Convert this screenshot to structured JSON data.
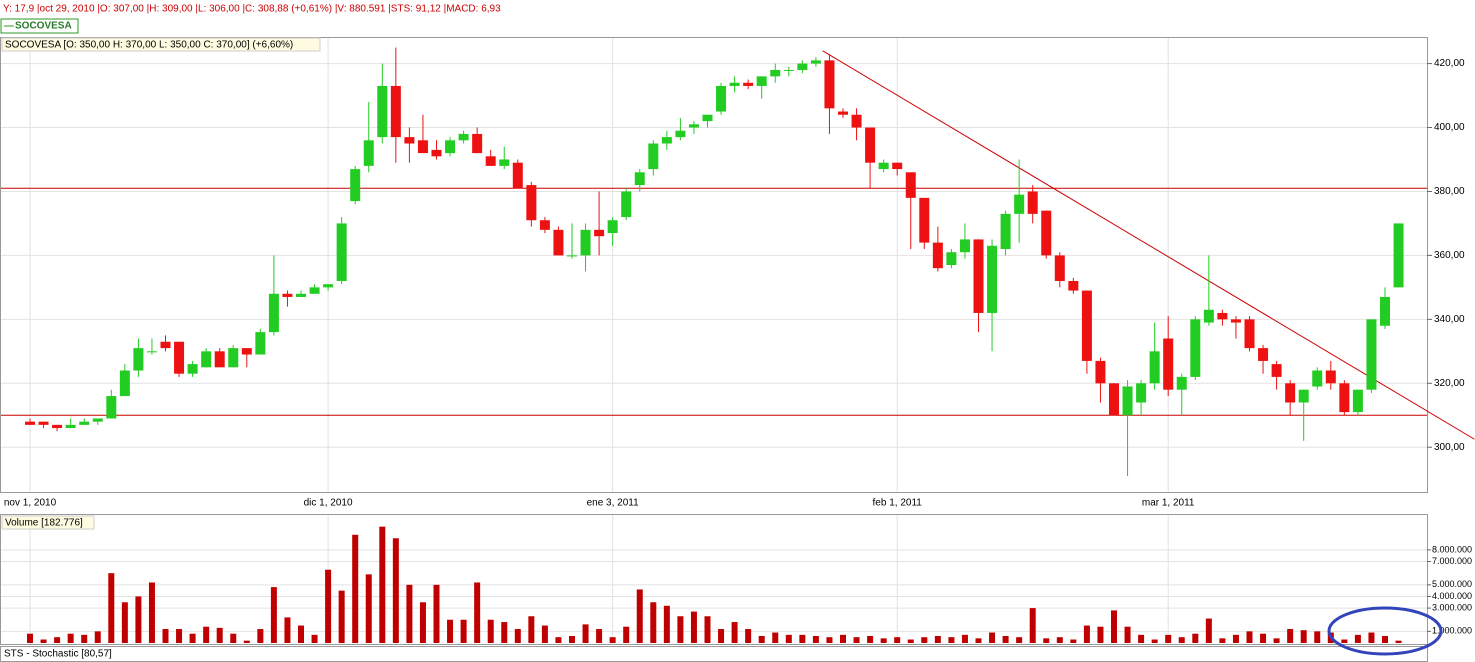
{
  "status": "Y: 17,9 |oct 29, 2010 |O: 307,00 |H: 309,00 |L: 306,00 |C: 308,88 (+0,61%) |V: 880.591 |STS: 91,12 |MACD: 6,93",
  "legend": "SOCOVESA",
  "chart_data": [
    {
      "type": "candlestick",
      "title": "SOCOVESA [O: 350,00  H: 370,00  L: 350,00  C: 370,00] (+6,60%)",
      "categories": [
        "nov 1, 2010",
        null,
        null,
        null,
        null,
        null,
        null,
        null,
        null,
        null,
        null,
        null,
        null,
        null,
        null,
        null,
        null,
        null,
        null,
        null,
        null,
        null,
        "dic 1, 2010",
        null,
        null,
        null,
        null,
        null,
        null,
        null,
        null,
        null,
        null,
        null,
        null,
        null,
        null,
        null,
        null,
        null,
        null,
        null,
        null,
        "ene 3, 2011",
        null,
        null,
        null,
        null,
        null,
        null,
        null,
        null,
        null,
        null,
        null,
        null,
        null,
        null,
        null,
        null,
        null,
        null,
        null,
        null,
        "feb 1, 2011",
        null,
        null,
        null,
        null,
        null,
        null,
        null,
        null,
        null,
        null,
        null,
        null,
        null,
        null,
        null,
        null,
        null,
        null,
        null,
        "mar 1, 2011",
        null,
        null,
        null,
        null,
        null,
        null,
        null,
        null,
        null,
        null,
        null,
        null,
        null,
        null,
        null,
        null,
        null
      ],
      "open": [
        308,
        308,
        307,
        306,
        307,
        308,
        309,
        316,
        324,
        330,
        333,
        333,
        323,
        325,
        330,
        325,
        331,
        329,
        336,
        348,
        347,
        348,
        350,
        352,
        377,
        388,
        397,
        413,
        397,
        396,
        393,
        392,
        396,
        398,
        391,
        388,
        389,
        382,
        371,
        368,
        360,
        360,
        368,
        367,
        372,
        382,
        387,
        395,
        397,
        400,
        402,
        405,
        413,
        414,
        413,
        416,
        418,
        418,
        420,
        421,
        405,
        404,
        400,
        387,
        389,
        386,
        378,
        364,
        357,
        361,
        365,
        342,
        362,
        373,
        380,
        374,
        360,
        352,
        349,
        327,
        320,
        310,
        314,
        320,
        334,
        318,
        322,
        339,
        342,
        340,
        340,
        331,
        326,
        320,
        314,
        319,
        324,
        320,
        311,
        318,
        338,
        350
      ],
      "high": [
        309,
        308,
        307,
        309,
        309,
        309,
        318,
        326,
        334,
        334,
        335,
        333,
        327,
        331,
        331,
        332,
        331,
        337,
        360,
        349,
        349,
        351,
        351,
        372,
        388,
        408,
        420,
        425,
        400,
        404,
        396,
        397,
        399,
        400,
        393,
        394,
        390,
        383,
        372,
        369,
        370,
        370,
        380,
        372,
        381,
        387,
        396,
        399,
        403,
        402,
        404,
        414,
        416,
        415,
        416,
        420,
        419,
        421,
        422,
        423,
        406,
        406,
        400,
        390,
        389,
        386,
        378,
        369,
        362,
        370,
        365,
        365,
        374,
        390,
        382,
        374,
        361,
        353,
        349,
        328,
        320,
        321,
        321,
        339,
        341,
        323,
        341,
        360,
        343,
        341,
        341,
        332,
        327,
        321,
        318,
        325,
        327,
        321,
        318,
        340,
        350,
        370
      ],
      "low": [
        307,
        306,
        305,
        306,
        307,
        307,
        309,
        316,
        322,
        329,
        330,
        322,
        322,
        325,
        325,
        325,
        325,
        329,
        335,
        344,
        347,
        348,
        349,
        351,
        376,
        386,
        395,
        389,
        389,
        393,
        390,
        391,
        395,
        392,
        388,
        387,
        381,
        369,
        367,
        360,
        359,
        355,
        360,
        363,
        371,
        380,
        385,
        393,
        396,
        398,
        400,
        404,
        411,
        412,
        409,
        414,
        416,
        417,
        419,
        398,
        403,
        396,
        381,
        386,
        385,
        362,
        362,
        355,
        356,
        359,
        336,
        330,
        360,
        364,
        370,
        359,
        350,
        348,
        323,
        314,
        310,
        291,
        310,
        318,
        316,
        310,
        321,
        338,
        338,
        334,
        330,
        323,
        318,
        310,
        302,
        318,
        318,
        310,
        310,
        317,
        337,
        350
      ],
      "close": [
        307,
        307,
        306,
        307,
        308,
        309,
        316,
        324,
        331,
        330,
        331,
        323,
        326,
        330,
        325,
        331,
        329,
        336,
        348,
        347,
        348,
        350,
        351,
        370,
        387,
        396,
        413,
        397,
        395,
        392,
        391,
        396,
        398,
        392,
        388,
        390,
        381,
        371,
        368,
        360,
        360,
        368,
        366,
        371,
        380,
        386,
        395,
        397,
        399,
        401,
        404,
        413,
        414,
        413,
        416,
        418,
        418,
        420,
        421,
        406,
        404,
        400,
        389,
        389,
        387,
        378,
        364,
        356,
        361,
        365,
        342,
        363,
        373,
        379,
        373,
        360,
        352,
        349,
        327,
        320,
        310,
        319,
        320,
        330,
        318,
        322,
        340,
        343,
        340,
        339,
        331,
        327,
        322,
        314,
        318,
        324,
        320,
        311,
        318,
        340,
        347,
        370
      ],
      "up_color": "#22cc22",
      "down_color": "#ee1111",
      "ylim": [
        286,
        428
      ],
      "yticks": [
        {
          "value": 300,
          "label": "300,00"
        },
        {
          "value": 320,
          "label": "320,00"
        },
        {
          "value": 340,
          "label": "340,00"
        },
        {
          "value": 360,
          "label": "360,00"
        },
        {
          "value": 380,
          "label": "380,00"
        },
        {
          "value": 400,
          "label": "400,00"
        },
        {
          "value": 420,
          "label": "420,00"
        }
      ],
      "grid": true,
      "hlines": [
        381,
        310
      ],
      "line_color": "#cc0000",
      "trendline": [
        [
          58.5,
          424
        ],
        [
          106.6,
          302.5
        ]
      ]
    },
    {
      "type": "bar",
      "title": "Volume [182.776]",
      "values": [
        800000,
        300000,
        500000,
        800000,
        700000,
        1000000,
        6000000,
        3500000,
        4000000,
        5200000,
        1200000,
        1200000,
        800000,
        1400000,
        1300000,
        800000,
        200000,
        1200000,
        4800000,
        2200000,
        1500000,
        700000,
        6300000,
        4500000,
        9300000,
        5900000,
        10000000,
        9000000,
        5000000,
        3500000,
        5000000,
        2000000,
        2000000,
        5200000,
        2000000,
        1800000,
        1200000,
        2300000,
        1500000,
        500000,
        600000,
        1600000,
        1200000,
        500000,
        1400000,
        4600000,
        3500000,
        3200000,
        2300000,
        2700000,
        2300000,
        1200000,
        1800000,
        1200000,
        600000,
        900000,
        700000,
        700000,
        600000,
        500000,
        700000,
        500000,
        600000,
        400000,
        500000,
        300000,
        500000,
        600000,
        500000,
        700000,
        400000,
        900000,
        600000,
        500000,
        3000000,
        400000,
        500000,
        300000,
        1500000,
        1400000,
        2800000,
        1400000,
        700000,
        300000,
        700000,
        500000,
        800000,
        2100000,
        400000,
        700000,
        1000000,
        800000,
        400000,
        1200000,
        1100000,
        1000000,
        900000,
        300000,
        700000,
        900000,
        600000,
        200000
      ],
      "color": "#c00000",
      "ylim": [
        0,
        11000000
      ],
      "yticks": [
        {
          "value": 1000000,
          "label": "1.000.000"
        },
        {
          "value": 3000000,
          "label": "3.000.000"
        },
        {
          "value": 4000000,
          "label": "4.000.000"
        },
        {
          "value": 5000000,
          "label": "5.000.000"
        },
        {
          "value": 7000000,
          "label": "7.000.000"
        },
        {
          "value": 8000000,
          "label": "8.000.000"
        }
      ],
      "grid": true
    },
    {
      "type": "panel",
      "title": "STS - Stochastic [80,57]"
    }
  ]
}
